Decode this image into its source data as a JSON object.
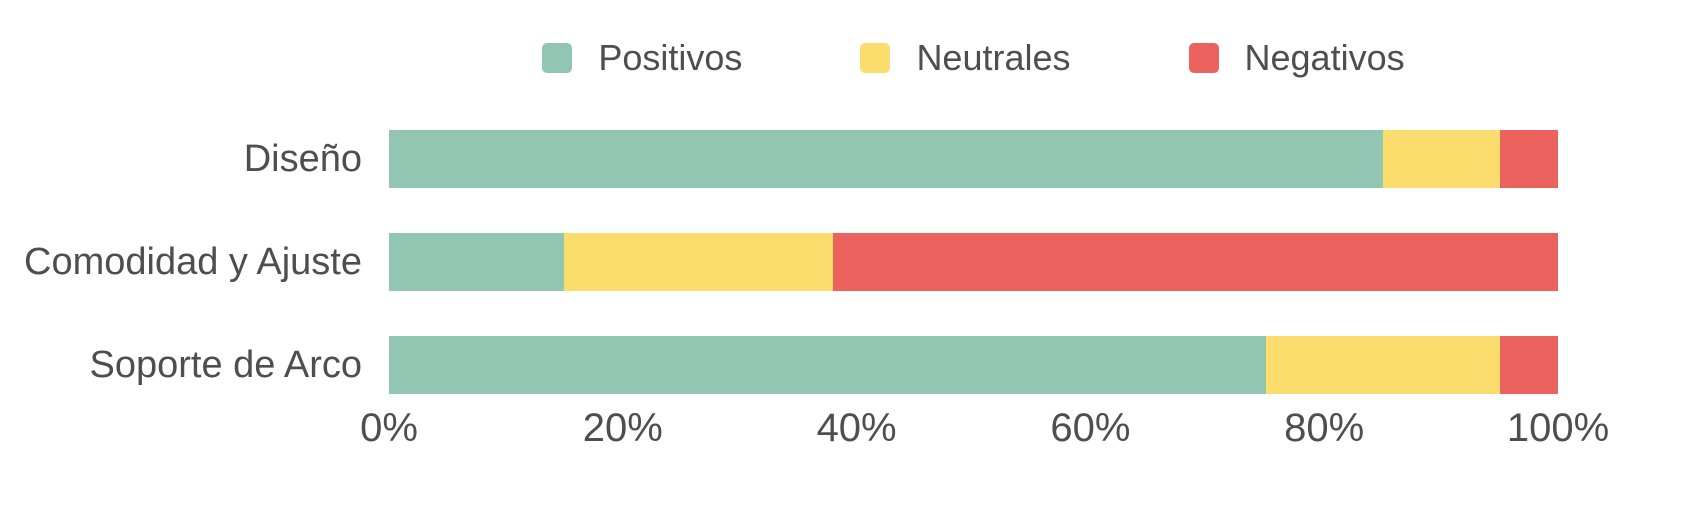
{
  "chart_data": {
    "type": "bar",
    "orientation": "horizontal",
    "stacked": true,
    "title": "",
    "xlabel": "",
    "ylabel": "",
    "unit": "%",
    "categories": [
      "Diseño",
      "Comodidad y Ajuste",
      "Soporte de Arco"
    ],
    "series": [
      {
        "name": "Positivos",
        "color": "#93c5b3",
        "values": [
          85,
          15,
          75
        ]
      },
      {
        "name": "Neutrales",
        "color": "#fadd6d",
        "values": [
          10,
          23,
          20
        ]
      },
      {
        "name": "Negativos",
        "color": "#eb625e",
        "values": [
          5,
          62,
          5
        ]
      }
    ],
    "xlim": [
      0,
      100
    ],
    "x_tick_labels": [
      "0%",
      "20%",
      "40%",
      "60%",
      "80%",
      "100%"
    ],
    "legend_position": "top-center",
    "grid": false
  },
  "colors": {
    "background": "#ffffff",
    "text": "#4e4e4e"
  }
}
